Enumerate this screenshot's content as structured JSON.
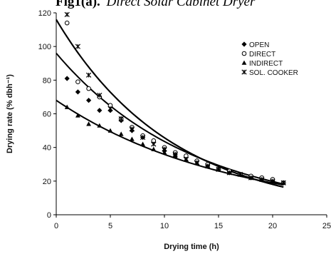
{
  "chart_data": {
    "type": "scatter",
    "title_bold": "Fig1(a).",
    "title_italic": "Direct Solar Cabinet Dryer",
    "xlabel": "Drying time (h)",
    "ylabel": "Drying rate (% dbh⁻¹)",
    "xlim": [
      0,
      25
    ],
    "ylim": [
      0,
      120
    ],
    "xticks": [
      0,
      5,
      10,
      15,
      20,
      25
    ],
    "yticks": [
      0,
      20,
      40,
      60,
      80,
      100,
      120
    ],
    "legend_position": "top-right",
    "series": [
      {
        "name": "OPEN",
        "marker": "diamond",
        "x": [
          1,
          2,
          3,
          4,
          5,
          6,
          7,
          8,
          9,
          10,
          11,
          12,
          13,
          14,
          15,
          16,
          17,
          18,
          19,
          20,
          21
        ],
        "y": [
          81,
          73,
          68,
          62,
          62,
          56,
          50,
          46,
          43,
          38,
          36,
          34,
          32,
          29,
          27,
          25,
          24,
          22,
          21,
          20,
          19
        ],
        "trend": {
          "a": 96,
          "b": 0.079
        }
      },
      {
        "name": "DIRECT",
        "marker": "circle",
        "x": [
          1,
          2,
          3,
          4,
          5,
          6,
          7,
          8,
          9,
          10,
          11,
          12,
          13,
          14,
          15,
          16,
          17,
          18,
          19,
          20,
          21
        ],
        "y": [
          114,
          79,
          75,
          70,
          65,
          57,
          52,
          47,
          44,
          40,
          37,
          35,
          32,
          30,
          27,
          26,
          24,
          23,
          22,
          21,
          19
        ],
        "trend": {
          "a": 116,
          "b": 0.093
        }
      },
      {
        "name": "INDIRECT",
        "marker": "triangle",
        "x": [
          1,
          2,
          3,
          4,
          5,
          6,
          7,
          8,
          9,
          10,
          11,
          12,
          13,
          14,
          15,
          16,
          17,
          18,
          19,
          20,
          21
        ],
        "y": [
          64,
          59,
          54,
          53,
          50,
          48,
          45,
          42,
          39,
          37,
          35,
          33,
          31,
          29,
          27,
          25,
          24,
          22,
          21,
          20,
          19
        ],
        "trend": {
          "a": 68,
          "b": 0.064
        }
      },
      {
        "name": "SOL. COOKER",
        "marker": "star",
        "x": [
          1,
          2,
          3,
          4,
          5,
          6,
          7,
          8,
          9,
          10,
          11,
          12,
          13,
          14,
          15,
          16,
          17,
          18,
          19,
          20,
          21
        ],
        "y": [
          119,
          100,
          83,
          71,
          63,
          57,
          51,
          46,
          42,
          39,
          36,
          33,
          31,
          29,
          27,
          25,
          24,
          22,
          21,
          20,
          19
        ],
        "trend": {
          "a": 116,
          "b": 0.093
        }
      }
    ]
  }
}
